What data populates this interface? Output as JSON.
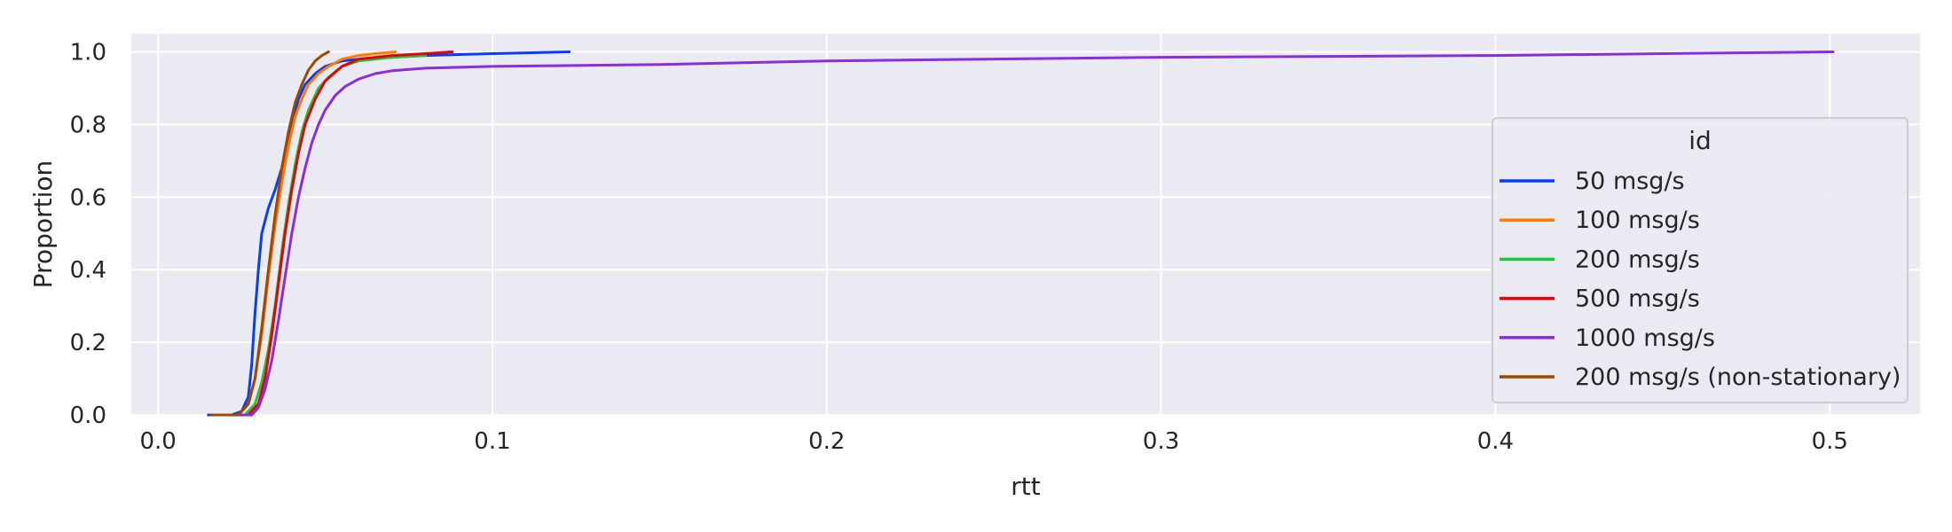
{
  "chart_data": {
    "type": "line",
    "title": "",
    "xlabel": "rtt",
    "ylabel": "Proportion",
    "xlim": [
      -0.008,
      0.527
    ],
    "ylim": [
      0.0,
      1.05
    ],
    "xticks": [
      0.0,
      0.1,
      0.2,
      0.3,
      0.4,
      0.5
    ],
    "xtick_labels": [
      "0.0",
      "0.1",
      "0.2",
      "0.3",
      "0.4",
      "0.5"
    ],
    "yticks": [
      0.0,
      0.2,
      0.4,
      0.6,
      0.8,
      1.0
    ],
    "ytick_labels": [
      "0.0",
      "0.2",
      "0.4",
      "0.6",
      "0.8",
      "1.0"
    ],
    "grid": true,
    "background": "#eaeaf2",
    "legend": {
      "title": "id",
      "placement": "right"
    },
    "series": [
      {
        "name": "50 msg/s",
        "color": "#023eff",
        "x": [
          0.015,
          0.022,
          0.025,
          0.027,
          0.028,
          0.029,
          0.03,
          0.031,
          0.033,
          0.035,
          0.037,
          0.039,
          0.04,
          0.042,
          0.044,
          0.047,
          0.05,
          0.055,
          0.06,
          0.07,
          0.08,
          0.1,
          0.123
        ],
        "y": [
          0.0,
          0.0,
          0.01,
          0.05,
          0.14,
          0.28,
          0.4,
          0.5,
          0.57,
          0.62,
          0.68,
          0.75,
          0.8,
          0.87,
          0.91,
          0.94,
          0.96,
          0.975,
          0.98,
          0.985,
          0.99,
          0.995,
          1.0
        ]
      },
      {
        "name": "100 msg/s",
        "color": "#ff7c00",
        "x": [
          0.016,
          0.024,
          0.027,
          0.029,
          0.031,
          0.033,
          0.035,
          0.037,
          0.039,
          0.041,
          0.043,
          0.045,
          0.048,
          0.051,
          0.055,
          0.06,
          0.065,
          0.071
        ],
        "y": [
          0.0,
          0.0,
          0.03,
          0.1,
          0.22,
          0.38,
          0.52,
          0.64,
          0.74,
          0.82,
          0.87,
          0.91,
          0.94,
          0.96,
          0.98,
          0.99,
          0.995,
          1.0
        ]
      },
      {
        "name": "200 msg/s",
        "color": "#1ac938",
        "x": [
          0.017,
          0.026,
          0.029,
          0.031,
          0.033,
          0.035,
          0.037,
          0.039,
          0.041,
          0.043,
          0.045,
          0.048,
          0.051,
          0.055,
          0.06,
          0.07,
          0.08
        ],
        "y": [
          0.0,
          0.0,
          0.03,
          0.09,
          0.18,
          0.3,
          0.45,
          0.58,
          0.69,
          0.78,
          0.84,
          0.9,
          0.93,
          0.96,
          0.975,
          0.985,
          0.99
        ]
      },
      {
        "name": "500 msg/s",
        "color": "#e8000b",
        "x": [
          0.018,
          0.027,
          0.03,
          0.032,
          0.034,
          0.036,
          0.038,
          0.04,
          0.042,
          0.044,
          0.047,
          0.05,
          0.055,
          0.06,
          0.07,
          0.08,
          0.088
        ],
        "y": [
          0.0,
          0.0,
          0.03,
          0.1,
          0.22,
          0.36,
          0.5,
          0.62,
          0.72,
          0.8,
          0.87,
          0.92,
          0.96,
          0.98,
          0.99,
          0.995,
          1.0
        ]
      },
      {
        "name": "1000 msg/s",
        "color": "#8b2be2",
        "x": [
          0.018,
          0.028,
          0.03,
          0.032,
          0.034,
          0.036,
          0.038,
          0.04,
          0.042,
          0.044,
          0.046,
          0.048,
          0.05,
          0.053,
          0.056,
          0.06,
          0.065,
          0.07,
          0.08,
          0.1,
          0.15,
          0.2,
          0.3,
          0.4,
          0.45,
          0.501
        ],
        "y": [
          0.0,
          0.0,
          0.02,
          0.07,
          0.15,
          0.26,
          0.38,
          0.5,
          0.6,
          0.68,
          0.75,
          0.8,
          0.84,
          0.88,
          0.905,
          0.925,
          0.94,
          0.948,
          0.955,
          0.96,
          0.965,
          0.975,
          0.985,
          0.99,
          0.995,
          1.0
        ]
      },
      {
        "name": "200 msg/s (non-stationary)",
        "color": "#9f4800",
        "x": [
          0.016,
          0.024,
          0.027,
          0.029,
          0.031,
          0.033,
          0.035,
          0.037,
          0.039,
          0.041,
          0.043,
          0.045,
          0.047,
          0.049,
          0.051
        ],
        "y": [
          0.0,
          0.0,
          0.03,
          0.1,
          0.24,
          0.4,
          0.55,
          0.68,
          0.78,
          0.86,
          0.91,
          0.95,
          0.975,
          0.99,
          1.0
        ]
      }
    ]
  }
}
